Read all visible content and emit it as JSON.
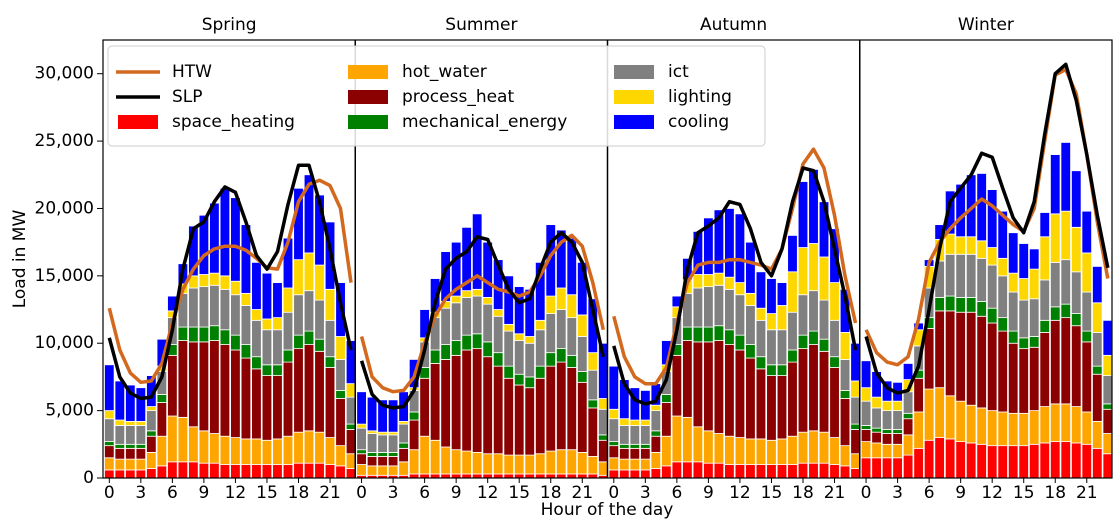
{
  "chart_data": {
    "type": "bar",
    "stacked": true,
    "xlabel": "Hour of the day",
    "ylabel": "Load in MW",
    "panels": [
      "Spring",
      "Summer",
      "Autumn",
      "Winter"
    ],
    "x": [
      0,
      1,
      2,
      3,
      4,
      5,
      6,
      7,
      8,
      9,
      10,
      11,
      12,
      13,
      14,
      15,
      16,
      17,
      18,
      19,
      20,
      21,
      22,
      23
    ],
    "xlim": [
      -0.6,
      23.4
    ],
    "xticks": [
      0,
      3,
      6,
      9,
      12,
      15,
      18,
      21
    ],
    "ylim": [
      0,
      32500
    ],
    "yticks": [
      0,
      {
        "value": 5000,
        "label": "5,000"
      },
      {
        "value": 10000,
        "label": "10,000"
      },
      {
        "value": 15000,
        "label": "15,000"
      },
      {
        "value": 20000,
        "label": "20,000"
      },
      {
        "value": 25000,
        "label": "25,000"
      },
      {
        "value": 30000,
        "label": "30,000"
      }
    ],
    "legend": "upper left",
    "series": [
      {
        "name": "HTW",
        "kind": "line",
        "color": "#d2691e",
        "values": [
          [
            12600,
            9500,
            7800,
            7100,
            7200,
            8500,
            11500,
            14000,
            15500,
            16500,
            17000,
            17200,
            17200,
            16900,
            16300,
            15600,
            15500,
            17500,
            20500,
            21800,
            22100,
            21700,
            20000,
            14500
          ],
          [
            10500,
            7500,
            6700,
            6400,
            6500,
            7500,
            10000,
            12000,
            13300,
            14000,
            14500,
            15000,
            14500,
            14000,
            13800,
            13500,
            13800,
            15000,
            16500,
            17500,
            18000,
            17200,
            14500,
            11000
          ],
          [
            12000,
            9000,
            7500,
            7000,
            7000,
            8200,
            11500,
            14500,
            15800,
            16000,
            16000,
            16200,
            16200,
            16000,
            15800,
            15500,
            17000,
            20000,
            23300,
            24400,
            23000,
            19500,
            15000,
            11500
          ],
          [
            11000,
            9300,
            8600,
            8400,
            9000,
            11800,
            16000,
            17500,
            18500,
            19300,
            20000,
            20700,
            20200,
            19500,
            18800,
            18300,
            20000,
            25000,
            29900,
            30300,
            28500,
            24000,
            19000,
            14800
          ]
        ]
      },
      {
        "name": "SLP",
        "kind": "line",
        "color": "#000000",
        "values": [
          [
            10400,
            7500,
            6300,
            5900,
            6000,
            7500,
            11000,
            15500,
            18500,
            19000,
            20500,
            21600,
            21200,
            19000,
            16500,
            15500,
            16800,
            20300,
            23200,
            23200,
            20500,
            17000,
            13000,
            9500
          ],
          [
            8700,
            6200,
            5400,
            5200,
            5300,
            6500,
            9500,
            13000,
            15500,
            16300,
            16800,
            17900,
            17700,
            15800,
            14000,
            13000,
            13300,
            15500,
            17500,
            18200,
            17500,
            16000,
            12500,
            9000
          ],
          [
            9800,
            7000,
            5800,
            5500,
            5700,
            7300,
            11000,
            15500,
            18200,
            18700,
            19300,
            20500,
            20300,
            18500,
            16000,
            15000,
            17000,
            20500,
            23000,
            22800,
            20500,
            17000,
            13500,
            9500
          ],
          [
            10500,
            7800,
            6700,
            6300,
            6500,
            8300,
            12500,
            17000,
            20500,
            21500,
            22500,
            24100,
            23800,
            21500,
            19300,
            18200,
            20500,
            25500,
            30000,
            30700,
            28000,
            24000,
            19500,
            15600
          ]
        ]
      },
      {
        "name": "space_heating",
        "kind": "bar",
        "color": "#ff0000",
        "values": [
          [
            600,
            600,
            600,
            600,
            700,
            900,
            1200,
            1200,
            1200,
            1100,
            1100,
            1000,
            1000,
            1000,
            1000,
            1000,
            1000,
            1000,
            1100,
            1100,
            1100,
            1000,
            900,
            700
          ],
          [
            200,
            200,
            200,
            200,
            200,
            300,
            300,
            300,
            300,
            300,
            300,
            300,
            300,
            300,
            300,
            300,
            300,
            300,
            300,
            300,
            300,
            300,
            300,
            200
          ],
          [
            600,
            600,
            600,
            600,
            700,
            900,
            1200,
            1200,
            1200,
            1100,
            1100,
            1000,
            1000,
            1000,
            1000,
            1000,
            1000,
            1000,
            1100,
            1100,
            1100,
            1000,
            900,
            700
          ],
          [
            1500,
            1500,
            1500,
            1500,
            1700,
            2200,
            2800,
            3000,
            2900,
            2700,
            2600,
            2500,
            2400,
            2400,
            2400,
            2400,
            2500,
            2600,
            2700,
            2700,
            2600,
            2500,
            2200,
            1800
          ]
        ]
      },
      {
        "name": "hot_water",
        "kind": "bar",
        "color": "#ffa500",
        "values": [
          [
            900,
            800,
            800,
            800,
            1200,
            2200,
            3400,
            3300,
            2600,
            2400,
            2200,
            2100,
            2000,
            1900,
            1900,
            1800,
            1900,
            2100,
            2300,
            2400,
            2300,
            2000,
            1500,
            1100
          ],
          [
            800,
            700,
            700,
            700,
            1000,
            1800,
            2800,
            2500,
            2000,
            1800,
            1700,
            1600,
            1500,
            1500,
            1400,
            1400,
            1400,
            1500,
            1700,
            1800,
            1800,
            1600,
            1300,
            1000
          ],
          [
            900,
            800,
            800,
            800,
            1200,
            2200,
            3400,
            3300,
            2600,
            2400,
            2200,
            2100,
            2000,
            1900,
            1900,
            1800,
            1900,
            2100,
            2300,
            2400,
            2300,
            2000,
            1500,
            1100
          ],
          [
            1200,
            1100,
            1000,
            1000,
            1500,
            2700,
            3800,
            3700,
            3200,
            3000,
            2800,
            2700,
            2600,
            2500,
            2400,
            2400,
            2500,
            2700,
            2800,
            2800,
            2700,
            2400,
            2000,
            1500
          ]
        ]
      },
      {
        "name": "process_heat",
        "kind": "bar",
        "color": "#8b0000",
        "values": [
          [
            900,
            800,
            800,
            800,
            1200,
            2500,
            4500,
            5700,
            6300,
            6600,
            6900,
            6800,
            6500,
            6000,
            5200,
            4800,
            4700,
            5500,
            6200,
            6400,
            6000,
            5200,
            3500,
            1800
          ],
          [
            800,
            700,
            700,
            700,
            1000,
            2200,
            4300,
            5700,
            6500,
            7000,
            7500,
            7700,
            7200,
            6500,
            5700,
            5200,
            5000,
            5600,
            6300,
            6500,
            6100,
            5200,
            3600,
            1600
          ],
          [
            900,
            800,
            800,
            800,
            1200,
            2500,
            4500,
            5700,
            6300,
            6600,
            6900,
            6800,
            6500,
            6000,
            5200,
            4800,
            4700,
            5500,
            6200,
            6400,
            6000,
            5200,
            3500,
            1800
          ],
          [
            900,
            800,
            800,
            800,
            1200,
            2500,
            4500,
            5700,
            6300,
            6600,
            6900,
            6800,
            6500,
            6000,
            5200,
            4800,
            4700,
            5500,
            6200,
            6400,
            6000,
            5200,
            3500,
            1800
          ]
        ]
      },
      {
        "name": "mechanical_energy",
        "kind": "bar",
        "color": "#008000",
        "values": [
          [
            300,
            300,
            300,
            300,
            400,
            600,
            800,
            1000,
            1100,
            1100,
            1100,
            1100,
            1100,
            1000,
            900,
            800,
            800,
            900,
            1000,
            1000,
            900,
            800,
            600,
            400
          ],
          [
            300,
            300,
            300,
            300,
            400,
            600,
            800,
            1000,
            1100,
            1100,
            1100,
            1100,
            1100,
            1000,
            900,
            800,
            800,
            900,
            1000,
            1000,
            900,
            800,
            600,
            400
          ],
          [
            300,
            300,
            300,
            300,
            400,
            600,
            800,
            1000,
            1100,
            1100,
            1100,
            1100,
            1100,
            1000,
            900,
            800,
            800,
            900,
            1000,
            1000,
            900,
            800,
            600,
            400
          ],
          [
            300,
            300,
            300,
            300,
            400,
            600,
            800,
            1000,
            1100,
            1100,
            1100,
            1100,
            1100,
            1000,
            900,
            800,
            800,
            900,
            1000,
            1000,
            900,
            800,
            600,
            400
          ]
        ]
      },
      {
        "name": "ict",
        "kind": "bar",
        "color": "#808080",
        "values": [
          [
            1700,
            1400,
            1400,
            1400,
            1500,
            1700,
            2000,
            2500,
            2900,
            3000,
            3000,
            3000,
            3000,
            2900,
            2700,
            2600,
            2600,
            2800,
            3000,
            3000,
            2900,
            2700,
            2300,
            2000
          ],
          [
            1600,
            1400,
            1300,
            1300,
            1400,
            1600,
            1900,
            2400,
            2700,
            2800,
            2800,
            2800,
            2800,
            2700,
            2600,
            2500,
            2500,
            2700,
            2900,
            2900,
            2800,
            2600,
            2200,
            1900
          ],
          [
            1700,
            1400,
            1400,
            1400,
            1500,
            1700,
            2000,
            2500,
            2900,
            3000,
            3000,
            3000,
            3000,
            2900,
            2700,
            2600,
            2600,
            2800,
            3000,
            3000,
            2900,
            2700,
            2300,
            2000
          ],
          [
            1800,
            1500,
            1400,
            1400,
            1600,
            1800,
            2200,
            2700,
            3100,
            3200,
            3200,
            3200,
            3200,
            3100,
            2900,
            2800,
            2800,
            3000,
            3300,
            3300,
            3100,
            2900,
            2500,
            2100
          ]
        ]
      },
      {
        "name": "lighting",
        "kind": "bar",
        "color": "#ffd700",
        "values": [
          [
            600,
            400,
            300,
            300,
            300,
            400,
            500,
            700,
            900,
            900,
            900,
            1000,
            1000,
            900,
            800,
            800,
            900,
            1800,
            2600,
            2800,
            2600,
            2300,
            1700,
            1000
          ],
          [
            300,
            200,
            200,
            200,
            200,
            200,
            300,
            400,
            500,
            500,
            500,
            500,
            500,
            500,
            500,
            500,
            500,
            700,
            1300,
            1600,
            1700,
            1600,
            1300,
            800
          ],
          [
            700,
            500,
            400,
            400,
            400,
            500,
            800,
            1000,
            1000,
            900,
            900,
            900,
            900,
            900,
            900,
            1200,
            1800,
            3000,
            3500,
            3500,
            3200,
            2800,
            2000,
            1200
          ],
          [
            1000,
            800,
            700,
            700,
            900,
            1200,
            1600,
            1600,
            1500,
            1300,
            1300,
            1300,
            1300,
            1300,
            1400,
            1600,
            2200,
            3200,
            3600,
            3600,
            3300,
            2900,
            2200,
            1500
          ]
        ]
      },
      {
        "name": "cooling",
        "kind": "bar",
        "color": "#0000ff",
        "values": [
          [
            3400,
            2900,
            2700,
            2500,
            2300,
            2000,
            1100,
            1500,
            3700,
            4400,
            5200,
            6500,
            6200,
            5100,
            3500,
            3400,
            2600,
            3700,
            5300,
            5800,
            5200,
            5000,
            4000,
            3200
          ],
          [
            2400,
            2500,
            2400,
            2400,
            2200,
            2100,
            2100,
            2500,
            3700,
            4000,
            4700,
            5600,
            4100,
            3700,
            3600,
            3500,
            3500,
            4300,
            5300,
            4300,
            4200,
            3900,
            4000,
            4100
          ],
          [
            3200,
            2900,
            2400,
            2200,
            1600,
            1800,
            800,
            1600,
            3200,
            4200,
            4700,
            5100,
            5100,
            3800,
            2700,
            2600,
            1700,
            2700,
            4900,
            5500,
            4100,
            4000,
            3200,
            2800
          ],
          [
            2000,
            1900,
            1500,
            1400,
            1200,
            500,
            500,
            1100,
            3200,
            3900,
            4600,
            5000,
            4300,
            3500,
            3000,
            2600,
            1500,
            1800,
            4400,
            5100,
            4200,
            3100,
            2700,
            2600
          ]
        ]
      }
    ]
  }
}
